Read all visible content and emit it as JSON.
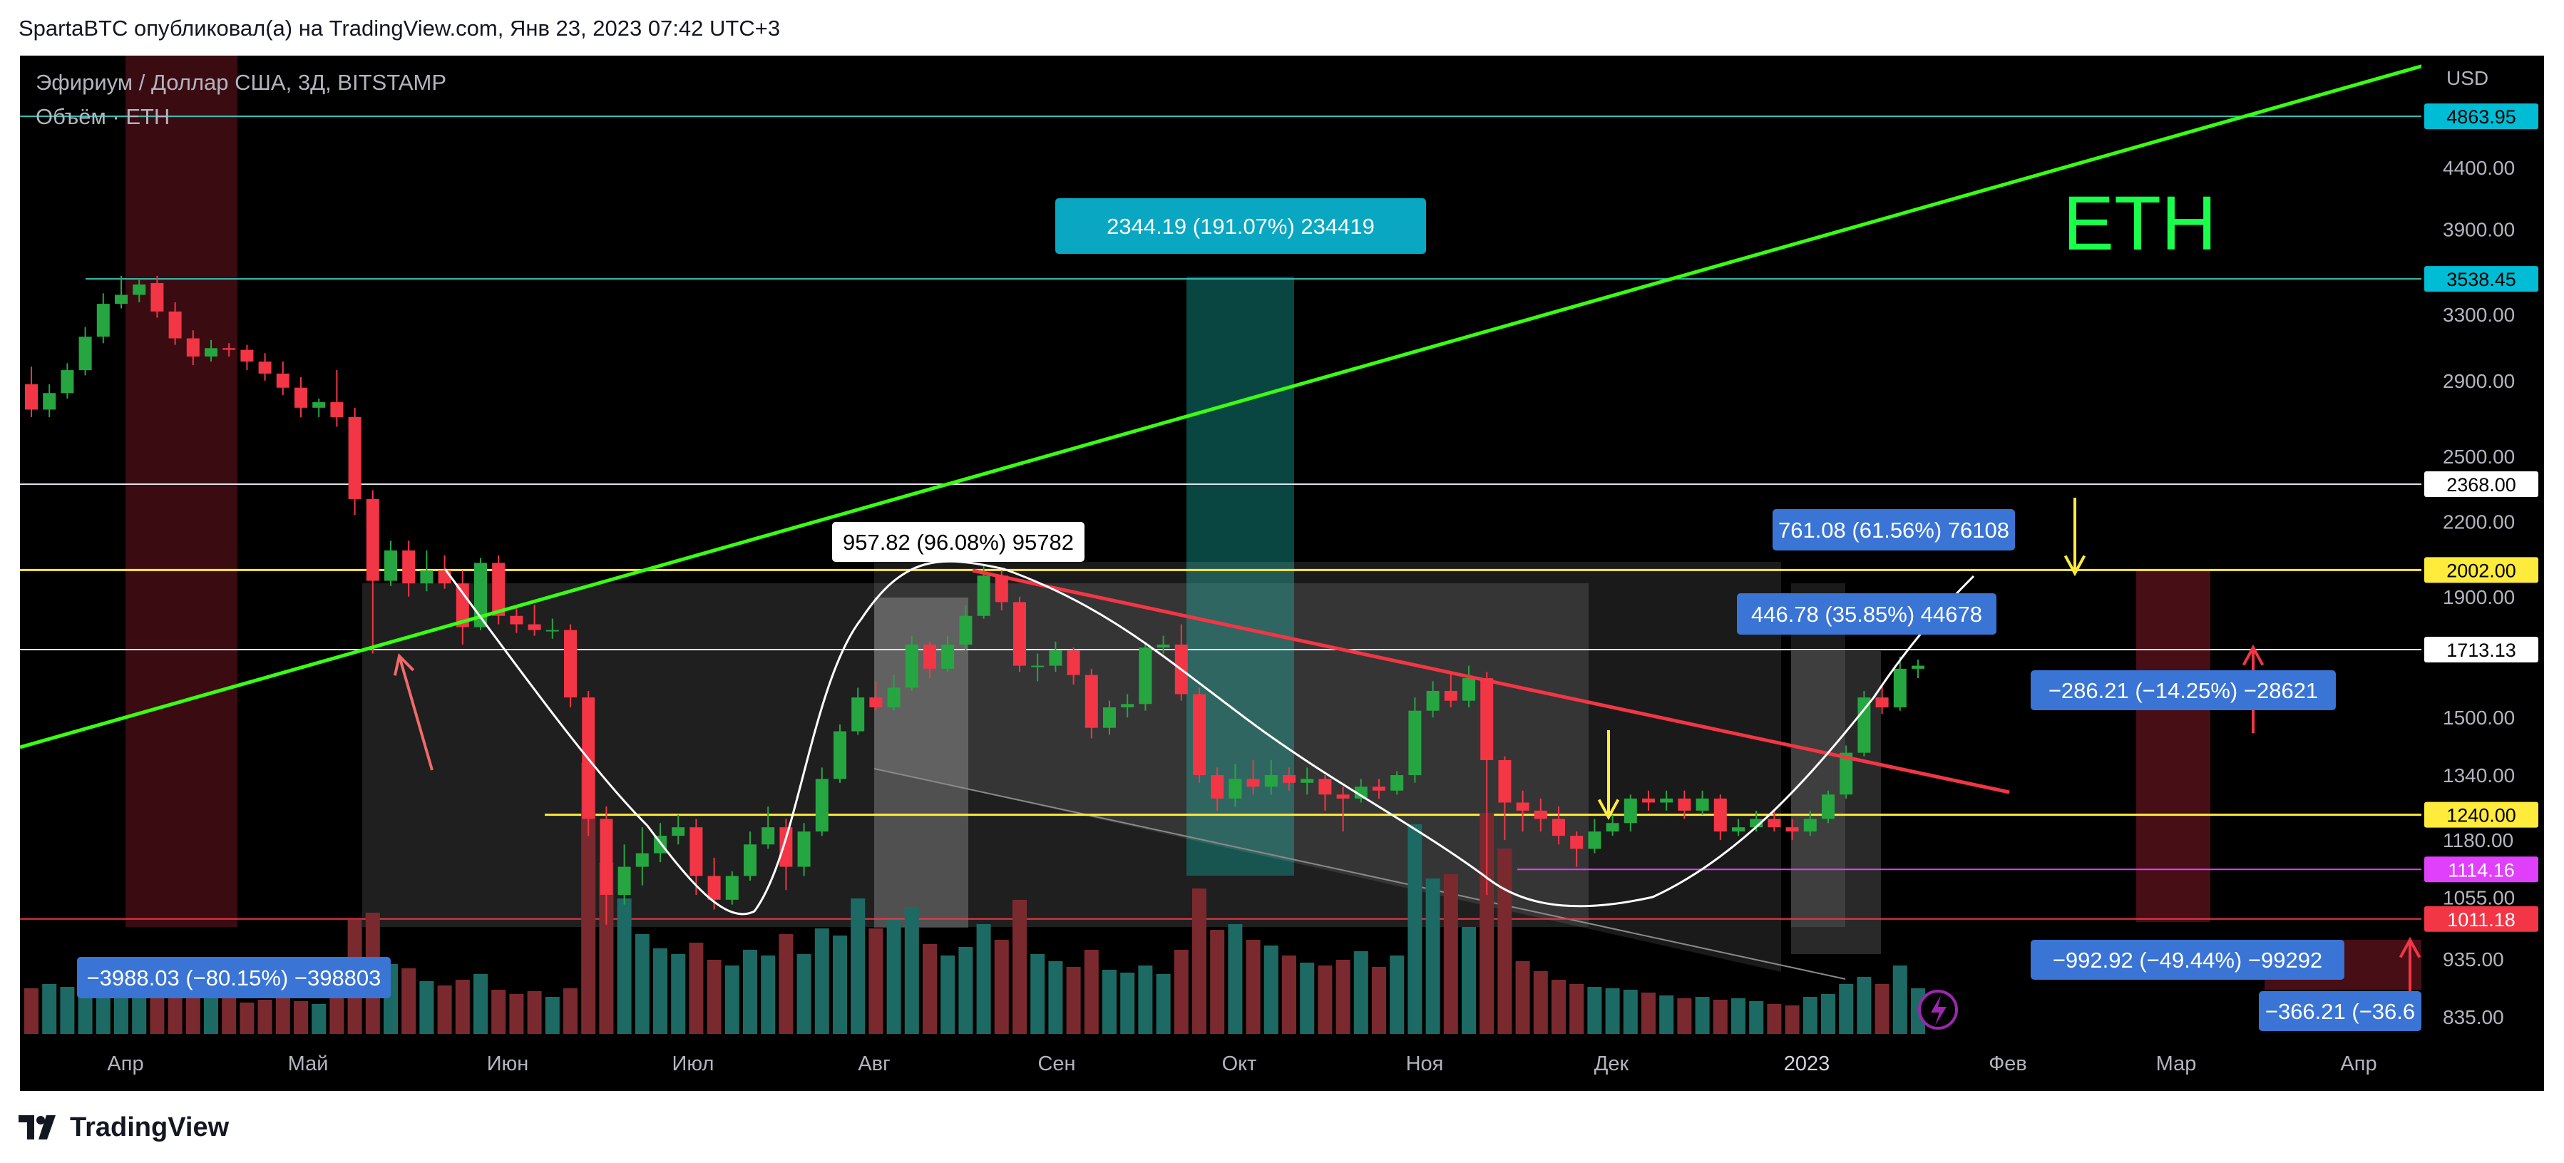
{
  "header": {
    "publish_line": "SpartaBTC опубликовал(а) на TradingView.com, Янв 23, 2023 07:42 UTC+3"
  },
  "footer": {
    "brand": "TradingView"
  },
  "colors": {
    "background": "#000000",
    "candle_up": "#26a641",
    "candle_down": "#f23645",
    "support_line": "#ffeb3b",
    "trend_line": "#39ff14",
    "down_trend": "#f23645",
    "eth_label": "#1aff4a",
    "callout_blue": "#3a74d4",
    "callout_teal": "#0aa7c2"
  },
  "chart_data": {
    "type": "candlestick",
    "title": "Эфириум / Доллар США, 3Д, BITSTAMP",
    "subtitle": "Объём · ETH",
    "currency_label": "USD",
    "watermark": "ETH",
    "x_ticks": [
      "Апр",
      "Май",
      "Июн",
      "Июл",
      "Авг",
      "Сен",
      "Окт",
      "Ноя",
      "Дек",
      "2023",
      "Фев",
      "Мар",
      "Апр"
    ],
    "y_ticks": [
      "4400.00",
      "3900.00",
      "3300.00",
      "2900.00",
      "2500.00",
      "2200.00",
      "1900.00",
      "1500.00",
      "1340.00",
      "1180.00",
      "1055.00",
      "935.00",
      "835.00"
    ],
    "ylim": [
      835,
      5000
    ],
    "y_scale": "log",
    "price_levels": [
      {
        "label": "4863.95",
        "value": 4863.95,
        "style": "teal"
      },
      {
        "label": "3538.45",
        "value": 3538.45,
        "style": "teal"
      },
      {
        "label": "2368.00",
        "value": 2368.0,
        "style": "white"
      },
      {
        "label": "2002.00",
        "value": 2002.0,
        "style": "yellow"
      },
      {
        "label": "1713.13",
        "value": 1713.13,
        "style": "white"
      },
      {
        "label": "1240.00",
        "value": 1240.0,
        "style": "yellow"
      },
      {
        "label": "1114.16",
        "value": 1114.16,
        "style": "magenta"
      },
      {
        "label": "1011.18",
        "value": 1011.18,
        "style": "red"
      }
    ],
    "candles": [
      [
        2880,
        2740,
        2980,
        2700
      ],
      [
        2740,
        2830,
        2880,
        2700
      ],
      [
        2830,
        2960,
        3000,
        2800
      ],
      [
        2960,
        3160,
        3220,
        2930
      ],
      [
        3160,
        3370,
        3440,
        3120
      ],
      [
        3370,
        3430,
        3560,
        3340
      ],
      [
        3430,
        3500,
        3540,
        3380
      ],
      [
        3510,
        3320,
        3560,
        3280
      ],
      [
        3320,
        3150,
        3380,
        3110
      ],
      [
        3150,
        3040,
        3200,
        2990
      ],
      [
        3040,
        3090,
        3140,
        3010
      ],
      [
        3090,
        3080,
        3120,
        3040
      ],
      [
        3080,
        3010,
        3110,
        2960
      ],
      [
        3010,
        2940,
        3060,
        2900
      ],
      [
        2940,
        2860,
        3010,
        2820
      ],
      [
        2860,
        2750,
        2920,
        2700
      ],
      [
        2750,
        2780,
        2800,
        2700
      ],
      [
        2780,
        2700,
        2960,
        2650
      ],
      [
        2700,
        2300,
        2750,
        2230
      ],
      [
        2300,
        1960,
        2340,
        1700
      ],
      [
        1960,
        2080,
        2120,
        1940
      ],
      [
        2080,
        1950,
        2120,
        1900
      ],
      [
        1950,
        2000,
        2080,
        1920
      ],
      [
        2000,
        1950,
        2060,
        1930
      ],
      [
        1950,
        1790,
        2000,
        1730
      ],
      [
        1790,
        2030,
        2050,
        1780
      ],
      [
        2030,
        1830,
        2060,
        1800
      ],
      [
        1830,
        1800,
        1860,
        1770
      ],
      [
        1800,
        1780,
        1870,
        1760
      ],
      [
        1780,
        1780,
        1820,
        1750
      ],
      [
        1780,
        1560,
        1800,
        1530
      ],
      [
        1560,
        1230,
        1580,
        1190
      ],
      [
        1230,
        1060,
        1260,
        1000
      ],
      [
        1060,
        1120,
        1170,
        1040
      ],
      [
        1120,
        1150,
        1210,
        1080
      ],
      [
        1150,
        1190,
        1220,
        1130
      ],
      [
        1190,
        1210,
        1240,
        1170
      ],
      [
        1210,
        1100,
        1230,
        1060
      ],
      [
        1100,
        1050,
        1140,
        1030
      ],
      [
        1050,
        1100,
        1110,
        1040
      ],
      [
        1100,
        1170,
        1200,
        1090
      ],
      [
        1170,
        1210,
        1260,
        1160
      ],
      [
        1210,
        1120,
        1230,
        1070
      ],
      [
        1120,
        1200,
        1220,
        1100
      ],
      [
        1200,
        1330,
        1360,
        1190
      ],
      [
        1330,
        1460,
        1480,
        1320
      ],
      [
        1460,
        1560,
        1590,
        1450
      ],
      [
        1560,
        1530,
        1610,
        1520
      ],
      [
        1530,
        1590,
        1630,
        1520
      ],
      [
        1590,
        1730,
        1760,
        1580
      ],
      [
        1730,
        1650,
        1740,
        1620
      ],
      [
        1650,
        1730,
        1760,
        1640
      ],
      [
        1730,
        1830,
        1870,
        1710
      ],
      [
        1830,
        1980,
        2020,
        1820
      ],
      [
        1980,
        1880,
        2000,
        1850
      ],
      [
        1880,
        1660,
        1900,
        1640
      ],
      [
        1660,
        1660,
        1700,
        1610
      ],
      [
        1660,
        1710,
        1740,
        1640
      ],
      [
        1710,
        1630,
        1720,
        1600
      ],
      [
        1630,
        1470,
        1650,
        1440
      ],
      [
        1470,
        1530,
        1550,
        1450
      ],
      [
        1530,
        1540,
        1570,
        1500
      ],
      [
        1540,
        1720,
        1740,
        1520
      ],
      [
        1720,
        1730,
        1760,
        1700
      ],
      [
        1730,
        1570,
        1800,
        1550
      ],
      [
        1570,
        1340,
        1590,
        1320
      ],
      [
        1340,
        1280,
        1360,
        1250
      ],
      [
        1280,
        1330,
        1370,
        1260
      ],
      [
        1330,
        1310,
        1380,
        1290
      ],
      [
        1310,
        1340,
        1380,
        1290
      ],
      [
        1340,
        1320,
        1360,
        1300
      ],
      [
        1320,
        1330,
        1360,
        1290
      ],
      [
        1330,
        1290,
        1340,
        1250
      ],
      [
        1290,
        1280,
        1310,
        1200
      ],
      [
        1280,
        1310,
        1330,
        1270
      ],
      [
        1310,
        1300,
        1330,
        1280
      ],
      [
        1300,
        1340,
        1350,
        1290
      ],
      [
        1340,
        1520,
        1560,
        1320
      ],
      [
        1520,
        1580,
        1610,
        1500
      ],
      [
        1580,
        1550,
        1640,
        1530
      ],
      [
        1550,
        1620,
        1660,
        1530
      ],
      [
        1620,
        1380,
        1640,
        1060
      ],
      [
        1380,
        1270,
        1390,
        1180
      ],
      [
        1270,
        1250,
        1300,
        1200
      ],
      [
        1250,
        1230,
        1280,
        1200
      ],
      [
        1230,
        1190,
        1260,
        1170
      ],
      [
        1190,
        1160,
        1200,
        1120
      ],
      [
        1160,
        1200,
        1230,
        1150
      ],
      [
        1200,
        1220,
        1240,
        1190
      ],
      [
        1220,
        1280,
        1290,
        1200
      ],
      [
        1280,
        1270,
        1300,
        1250
      ],
      [
        1270,
        1280,
        1300,
        1250
      ],
      [
        1280,
        1250,
        1300,
        1230
      ],
      [
        1250,
        1280,
        1300,
        1240
      ],
      [
        1280,
        1200,
        1290,
        1180
      ],
      [
        1200,
        1210,
        1230,
        1190
      ],
      [
        1210,
        1230,
        1250,
        1200
      ],
      [
        1230,
        1210,
        1250,
        1200
      ],
      [
        1210,
        1200,
        1230,
        1180
      ],
      [
        1200,
        1230,
        1250,
        1190
      ],
      [
        1230,
        1290,
        1300,
        1220
      ],
      [
        1290,
        1400,
        1420,
        1280
      ],
      [
        1400,
        1560,
        1580,
        1390
      ],
      [
        1560,
        1530,
        1600,
        1510
      ],
      [
        1530,
        1650,
        1690,
        1520
      ],
      [
        1650,
        1660,
        1680,
        1620
      ]
    ],
    "volume": [
      64,
      70,
      66,
      72,
      60,
      68,
      82,
      58,
      62,
      56,
      54,
      50,
      44,
      48,
      52,
      46,
      42,
      50,
      160,
      170,
      98,
      92,
      74,
      68,
      76,
      84,
      62,
      56,
      60,
      52,
      64,
      380,
      240,
      190,
      140,
      120,
      112,
      128,
      104,
      96,
      118,
      110,
      140,
      112,
      148,
      138,
      190,
      148,
      160,
      178,
      126,
      110,
      122,
      154,
      132,
      188,
      112,
      102,
      94,
      118,
      90,
      86,
      96,
      84,
      118,
      204,
      146,
      154,
      132,
      124,
      110,
      100,
      96,
      104,
      116,
      94,
      110,
      294,
      218,
      224,
      150,
      310,
      260,
      102,
      88,
      76,
      70,
      66,
      64,
      62,
      58,
      54,
      50,
      52,
      48,
      50,
      46,
      42,
      40,
      52,
      56,
      70,
      80,
      70,
      96,
      64
    ],
    "annotations": [
      {
        "kind": "price_range",
        "text": "2344.19 (191.07%) 234419"
      },
      {
        "kind": "price_range",
        "text": "957.82 (96.08%) 95782"
      },
      {
        "kind": "price_range",
        "text": "761.08 (61.56%) 76108"
      },
      {
        "kind": "price_range",
        "text": "446.78 (35.85%) 44678"
      },
      {
        "kind": "price_range",
        "text": "−286.21 (−14.25%) −28621"
      },
      {
        "kind": "price_range",
        "text": "−3988.03 (−80.15%) −398803"
      },
      {
        "kind": "price_range",
        "text": "−992.92 (−49.44%) −99292"
      },
      {
        "kind": "price_range",
        "text": "−366.21 (−36.6"
      }
    ]
  }
}
